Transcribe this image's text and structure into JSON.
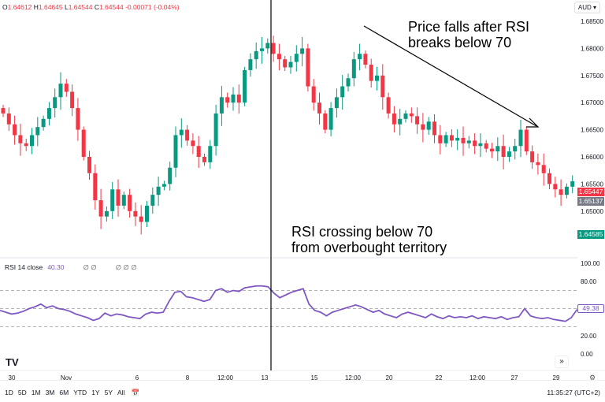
{
  "header": {
    "o_label": "O",
    "o": "1.64612",
    "h_label": "H",
    "h": "1.64645",
    "l_label": "L",
    "l": "1.64544",
    "c_label": "C",
    "c": "1.64544",
    "change": "-0.00071 (-0.04%)",
    "currency": "AUD"
  },
  "rsi_legend": {
    "name": "RSI 14 close",
    "value": "40.30",
    "g1": "∅ ∅",
    "g2": "∅ ∅ ∅"
  },
  "annotations": {
    "top": [
      "Price falls after RSI",
      "breaks below 70"
    ],
    "bottom": [
      "RSI crossing below 70",
      "from overbought territory"
    ]
  },
  "price_tags": {
    "last": "1.65447",
    "prev": "1.65137",
    "green": "1.64585",
    "rsi": "49.38"
  },
  "colors": {
    "up": "#089981",
    "down": "#f23645",
    "rsi": "#7e57c2"
  },
  "bottom_bar": {
    "timeframes": [
      "1D",
      "5D",
      "1M",
      "3M",
      "6M",
      "YTD",
      "1Y",
      "5Y",
      "All"
    ],
    "clock": "11:35:27 (UTC+2)"
  },
  "chart_data": [
    {
      "type": "candlestick",
      "ylim": [
        1.643,
        1.686
      ],
      "yticks": [
        "1.68500",
        "1.68000",
        "1.67500",
        "1.67000",
        "1.66500",
        "1.66000",
        "1.65500",
        "1.65000"
      ],
      "xticks": [
        "30",
        "Nov",
        "6",
        "8",
        "12:00",
        "13",
        "15",
        "12:00",
        "20",
        "22",
        "12:00",
        "27",
        "29"
      ],
      "close": [
        1.668,
        1.666,
        1.664,
        1.6625,
        1.662,
        1.664,
        1.6655,
        1.667,
        1.669,
        1.671,
        1.6735,
        1.672,
        1.669,
        1.665,
        1.66,
        1.657,
        1.652,
        1.649,
        1.65,
        1.654,
        1.651,
        1.653,
        1.65,
        1.649,
        1.648,
        1.651,
        1.653,
        1.6545,
        1.655,
        1.658,
        1.664,
        1.665,
        1.663,
        1.662,
        1.66,
        1.659,
        1.662,
        1.668,
        1.671,
        1.67,
        1.6715,
        1.67,
        1.676,
        1.678,
        1.6795,
        1.68,
        1.681,
        1.679,
        1.678,
        1.6765,
        1.6775,
        1.679,
        1.68,
        1.673,
        1.67,
        1.668,
        1.665,
        1.669,
        1.671,
        1.673,
        1.6745,
        1.678,
        1.679,
        1.677,
        1.674,
        1.675,
        1.671,
        1.668,
        1.666,
        1.667,
        1.668,
        1.6675,
        1.666,
        1.665,
        1.6665,
        1.664,
        1.6625,
        1.664,
        1.663,
        1.6635,
        1.6625,
        1.663,
        1.662,
        1.6625,
        1.6615,
        1.661,
        1.662,
        1.66,
        1.661,
        1.662,
        1.665,
        1.661,
        1.659,
        1.6585,
        1.657,
        1.655,
        1.654,
        1.653,
        1.6545,
        1.6555
      ]
    },
    {
      "type": "line",
      "name": "RSI 14 close",
      "ylim": [
        0,
        100
      ],
      "yticks": [
        "100.00",
        "80.00",
        "20.00",
        "0.00"
      ],
      "levels": [
        70,
        50,
        30
      ],
      "values": [
        48,
        46,
        44,
        45,
        47,
        50,
        52,
        55,
        51,
        53,
        50,
        49,
        47,
        44,
        42,
        40,
        37,
        39,
        45,
        42,
        44,
        43,
        41,
        40,
        39,
        44,
        46,
        45,
        46,
        58,
        68,
        69,
        63,
        62,
        60,
        58,
        60,
        70,
        72,
        68,
        70,
        69,
        73,
        74,
        75,
        75,
        74,
        67,
        62,
        65,
        68,
        70,
        72,
        55,
        48,
        46,
        42,
        46,
        48,
        50,
        52,
        54,
        52,
        49,
        46,
        48,
        44,
        42,
        40,
        44,
        46,
        44,
        42,
        40,
        44,
        41,
        39,
        42,
        40,
        41,
        40,
        42,
        39,
        41,
        40,
        39,
        41,
        38,
        40,
        41,
        50,
        42,
        40,
        39,
        40,
        38,
        37,
        36,
        40,
        49
      ]
    }
  ]
}
